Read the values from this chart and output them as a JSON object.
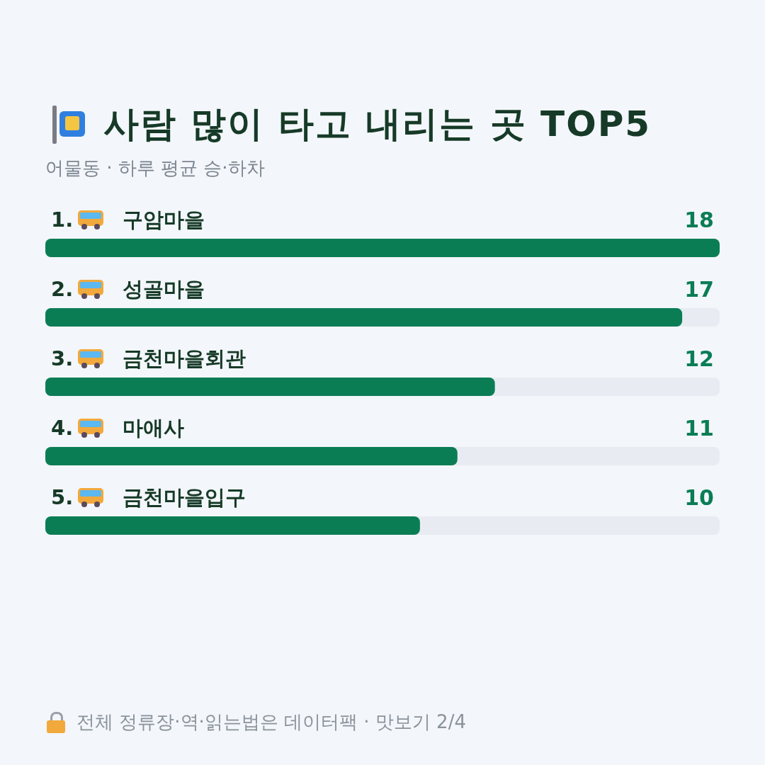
{
  "chart_data": {
    "type": "bar",
    "orientation": "horizontal",
    "title": "사람 많이 타고 내리는 곳 TOP5",
    "subtitle": "어물동 · 하루 평균 승·하차",
    "categories": [
      "1. 구암마을",
      "2. 성골마을",
      "3. 금천마을회관",
      "4. 마애사",
      "5. 금천마을입구"
    ],
    "values": [
      18,
      17,
      12,
      11,
      10
    ],
    "color": "#0b7d55",
    "xlim": [
      0,
      18
    ],
    "data_labels": true,
    "annotations": [
      "전체 정류장·역·읽는법은 데이터팩 · 맛보기 2/4"
    ]
  }
}
